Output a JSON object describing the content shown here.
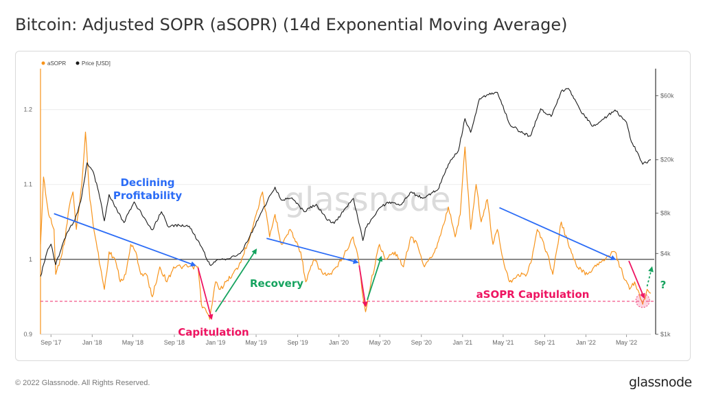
{
  "page": {
    "title": "Bitcoin: Adjusted SOPR (aSOPR) (14d Exponential Moving Average)",
    "copyright": "© 2022 Glassnode. All Rights Reserved.",
    "logo": "glassnode",
    "watermark": "glassnode"
  },
  "colors": {
    "asopr": "#f7931a",
    "price": "#1a1a1a",
    "blue_arrow": "#2b6cf6",
    "red_arrow": "#ee1461",
    "green_arrow": "#16a35f",
    "dashed_line": "#f0407a"
  },
  "chart_data": {
    "type": "line",
    "title": "",
    "legend_position": "top-left",
    "grid": true,
    "x_ticks": [
      "Sep '17",
      "Jan '18",
      "May '18",
      "Sep '18",
      "Jan '19",
      "May '19",
      "Sep '19",
      "Jan '20",
      "May '20",
      "Sep '20",
      "Jan '21",
      "May '21",
      "Sep '21",
      "Jan '22",
      "May '22"
    ],
    "x_range": [
      "2017-08-01",
      "2022-07-12"
    ],
    "y_left": {
      "ticks": [
        "0.9",
        "1",
        "1.1",
        "1.2"
      ],
      "range": [
        0.9,
        1.25
      ]
    },
    "y_right": {
      "ticks": [
        "$1k",
        "$4k",
        "$8k",
        "$20k",
        "$60k"
      ],
      "scale": "log",
      "range": [
        1000,
        90000
      ]
    },
    "reference_lines": [
      {
        "y": 1.0,
        "style": "solid",
        "color": "#333333"
      },
      {
        "y": 0.944,
        "style": "dashed",
        "color": "#f0407a"
      }
    ],
    "series": [
      {
        "name": "aSOPR",
        "axis": "left",
        "points": [
          [
            "2017-08-01",
            1.02
          ],
          [
            "2017-08-10",
            1.11
          ],
          [
            "2017-08-25",
            1.06
          ],
          [
            "2017-09-10",
            1.04
          ],
          [
            "2017-09-15",
            0.98
          ],
          [
            "2017-09-28",
            1.0
          ],
          [
            "2017-10-10",
            1.02
          ],
          [
            "2017-10-25",
            1.07
          ],
          [
            "2017-11-05",
            1.09
          ],
          [
            "2017-11-15",
            1.04
          ],
          [
            "2017-12-01",
            1.1
          ],
          [
            "2017-12-12",
            1.17
          ],
          [
            "2017-12-25",
            1.08
          ],
          [
            "2018-01-10",
            1.03
          ],
          [
            "2018-01-25",
            0.99
          ],
          [
            "2018-02-06",
            0.96
          ],
          [
            "2018-02-20",
            1.01
          ],
          [
            "2018-03-10",
            1.0
          ],
          [
            "2018-03-25",
            0.97
          ],
          [
            "2018-04-10",
            0.98
          ],
          [
            "2018-04-25",
            1.02
          ],
          [
            "2018-05-10",
            1.01
          ],
          [
            "2018-05-25",
            0.98
          ],
          [
            "2018-06-10",
            0.98
          ],
          [
            "2018-06-28",
            0.95
          ],
          [
            "2018-07-20",
            0.99
          ],
          [
            "2018-08-10",
            0.97
          ],
          [
            "2018-08-30",
            0.99
          ],
          [
            "2018-09-20",
            0.99
          ],
          [
            "2018-10-10",
            0.99
          ],
          [
            "2018-10-25",
            0.99
          ],
          [
            "2018-11-10",
            0.99
          ],
          [
            "2018-11-20",
            0.94
          ],
          [
            "2018-12-05",
            0.93
          ],
          [
            "2018-12-15",
            0.92
          ],
          [
            "2019-01-01",
            0.97
          ],
          [
            "2019-01-15",
            0.96
          ],
          [
            "2019-02-01",
            0.97
          ],
          [
            "2019-02-20",
            0.98
          ],
          [
            "2019-03-10",
            0.99
          ],
          [
            "2019-04-05",
            1.02
          ],
          [
            "2019-05-01",
            1.06
          ],
          [
            "2019-05-20",
            1.09
          ],
          [
            "2019-06-10",
            1.03
          ],
          [
            "2019-06-26",
            1.06
          ],
          [
            "2019-07-15",
            1.02
          ],
          [
            "2019-08-10",
            1.04
          ],
          [
            "2019-09-10",
            1.01
          ],
          [
            "2019-09-25",
            0.97
          ],
          [
            "2019-10-20",
            1.0
          ],
          [
            "2019-11-15",
            0.98
          ],
          [
            "2019-12-10",
            0.98
          ],
          [
            "2020-01-10",
            1.0
          ],
          [
            "2020-02-12",
            1.03
          ],
          [
            "2020-02-28",
            1.0
          ],
          [
            "2020-03-12",
            0.95
          ],
          [
            "2020-03-20",
            0.93
          ],
          [
            "2020-04-05",
            0.97
          ],
          [
            "2020-04-30",
            1.02
          ],
          [
            "2020-05-20",
            1.0
          ],
          [
            "2020-06-15",
            1.01
          ],
          [
            "2020-07-10",
            0.99
          ],
          [
            "2020-08-01",
            1.03
          ],
          [
            "2020-08-20",
            1.02
          ],
          [
            "2020-09-10",
            0.99
          ],
          [
            "2020-10-10",
            1.01
          ],
          [
            "2020-10-25",
            1.03
          ],
          [
            "2020-11-20",
            1.07
          ],
          [
            "2020-12-10",
            1.03
          ],
          [
            "2020-12-25",
            1.06
          ],
          [
            "2021-01-08",
            1.15
          ],
          [
            "2021-01-25",
            1.04
          ],
          [
            "2021-02-10",
            1.1
          ],
          [
            "2021-02-25",
            1.05
          ],
          [
            "2021-03-15",
            1.08
          ],
          [
            "2021-04-01",
            1.02
          ],
          [
            "2021-04-14",
            1.04
          ],
          [
            "2021-05-01",
            1.0
          ],
          [
            "2021-05-20",
            0.97
          ],
          [
            "2021-06-15",
            0.98
          ],
          [
            "2021-07-10",
            0.98
          ],
          [
            "2021-07-25",
            1.0
          ],
          [
            "2021-08-10",
            1.04
          ],
          [
            "2021-09-07",
            1.01
          ],
          [
            "2021-09-25",
            0.98
          ],
          [
            "2021-10-20",
            1.05
          ],
          [
            "2021-11-10",
            1.02
          ],
          [
            "2021-12-05",
            0.99
          ],
          [
            "2022-01-05",
            0.98
          ],
          [
            "2022-01-25",
            0.99
          ],
          [
            "2022-02-20",
            1.0
          ],
          [
            "2022-03-28",
            1.01
          ],
          [
            "2022-04-20",
            0.98
          ],
          [
            "2022-05-10",
            0.96
          ],
          [
            "2022-05-25",
            0.97
          ],
          [
            "2022-06-18",
            0.94
          ],
          [
            "2022-07-01",
            0.96
          ],
          [
            "2022-07-12",
            0.955
          ]
        ]
      },
      {
        "name": "Price [USD]",
        "axis": "right",
        "points": [
          [
            "2017-08-01",
            2700
          ],
          [
            "2017-08-20",
            4100
          ],
          [
            "2017-09-01",
            4700
          ],
          [
            "2017-09-15",
            3300
          ],
          [
            "2017-10-01",
            4300
          ],
          [
            "2017-10-20",
            5800
          ],
          [
            "2017-11-10",
            7000
          ],
          [
            "2017-11-28",
            9800
          ],
          [
            "2017-12-17",
            19000
          ],
          [
            "2018-01-05",
            16000
          ],
          [
            "2018-01-20",
            11500
          ],
          [
            "2018-02-06",
            7000
          ],
          [
            "2018-02-20",
            11000
          ],
          [
            "2018-03-15",
            8500
          ],
          [
            "2018-04-05",
            6800
          ],
          [
            "2018-05-05",
            9700
          ],
          [
            "2018-06-01",
            7500
          ],
          [
            "2018-06-28",
            6000
          ],
          [
            "2018-07-25",
            8200
          ],
          [
            "2018-08-15",
            6300
          ],
          [
            "2018-09-15",
            6500
          ],
          [
            "2018-10-15",
            6400
          ],
          [
            "2018-11-20",
            4500
          ],
          [
            "2018-12-15",
            3300
          ],
          [
            "2019-01-15",
            3600
          ],
          [
            "2019-02-15",
            3700
          ],
          [
            "2019-03-15",
            4000
          ],
          [
            "2019-04-10",
            5200
          ],
          [
            "2019-05-15",
            8000
          ],
          [
            "2019-06-26",
            12500
          ],
          [
            "2019-07-15",
            10000
          ],
          [
            "2019-08-15",
            10400
          ],
          [
            "2019-09-20",
            8200
          ],
          [
            "2019-10-26",
            9300
          ],
          [
            "2019-11-25",
            7200
          ],
          [
            "2019-12-18",
            6700
          ],
          [
            "2020-01-20",
            8700
          ],
          [
            "2020-02-13",
            10300
          ],
          [
            "2020-03-12",
            5000
          ],
          [
            "2020-03-20",
            6200
          ],
          [
            "2020-04-29",
            8700
          ],
          [
            "2020-05-30",
            9700
          ],
          [
            "2020-07-01",
            9200
          ],
          [
            "2020-08-01",
            11500
          ],
          [
            "2020-09-05",
            10300
          ],
          [
            "2020-10-20",
            12000
          ],
          [
            "2020-11-20",
            18500
          ],
          [
            "2020-12-20",
            23500
          ],
          [
            "2021-01-08",
            40500
          ],
          [
            "2021-01-25",
            32000
          ],
          [
            "2021-02-20",
            57000
          ],
          [
            "2021-03-13",
            60500
          ],
          [
            "2021-04-14",
            63500
          ],
          [
            "2021-05-20",
            37000
          ],
          [
            "2021-06-22",
            32000
          ],
          [
            "2021-07-20",
            30000
          ],
          [
            "2021-08-20",
            48000
          ],
          [
            "2021-09-20",
            42000
          ],
          [
            "2021-10-20",
            65000
          ],
          [
            "2021-11-10",
            68000
          ],
          [
            "2021-12-15",
            47000
          ],
          [
            "2022-01-22",
            35500
          ],
          [
            "2022-02-20",
            40000
          ],
          [
            "2022-03-28",
            47000
          ],
          [
            "2022-05-01",
            38000
          ],
          [
            "2022-05-12",
            29000
          ],
          [
            "2022-06-18",
            18500
          ],
          [
            "2022-07-12",
            20000
          ]
        ]
      }
    ],
    "annotations": [
      {
        "text": "Declining\nProfitability",
        "color": "#2b6cf6"
      },
      {
        "text": "Capitulation",
        "color": "#ee1461"
      },
      {
        "text": "Recovery",
        "color": "#16a35f"
      },
      {
        "text": "aSOPR Capitulation",
        "color": "#ee1461"
      },
      {
        "text": "?",
        "color": "#16a35f"
      }
    ],
    "arrows": [
      {
        "from": [
          "2017-09-10",
          1.061
        ],
        "to": [
          "2018-11-01",
          0.992
        ],
        "color": "#2b6cf6"
      },
      {
        "from": [
          "2018-11-10",
          0.989
        ],
        "to": [
          "2018-12-20",
          0.921
        ],
        "color": "#ee1461"
      },
      {
        "from": [
          "2019-01-01",
          0.93
        ],
        "to": [
          "2019-05-01",
          1.013
        ],
        "color": "#16a35f"
      },
      {
        "from": [
          "2019-06-01",
          1.028
        ],
        "to": [
          "2020-02-25",
          0.996
        ],
        "color": "#2b6cf6"
      },
      {
        "from": [
          "2020-03-01",
          0.992
        ],
        "to": [
          "2020-03-20",
          0.938
        ],
        "color": "#ee1461"
      },
      {
        "from": [
          "2020-03-25",
          0.946
        ],
        "to": [
          "2020-05-05",
          1.003
        ],
        "color": "#16a35f"
      },
      {
        "from": [
          "2021-04-20",
          1.069
        ],
        "to": [
          "2022-03-28",
          1.0
        ],
        "color": "#2b6cf6"
      },
      {
        "from": [
          "2022-05-08",
          0.998
        ],
        "to": [
          "2022-06-22",
          0.949
        ],
        "color": "#ee1461"
      },
      {
        "from": [
          "2022-07-01",
          0.964
        ],
        "to": [
          "2022-07-15",
          0.989
        ],
        "color": "#16a35f",
        "dashed": true
      }
    ],
    "marker": {
      "date": "2022-06-18",
      "value": 0.945
    }
  }
}
